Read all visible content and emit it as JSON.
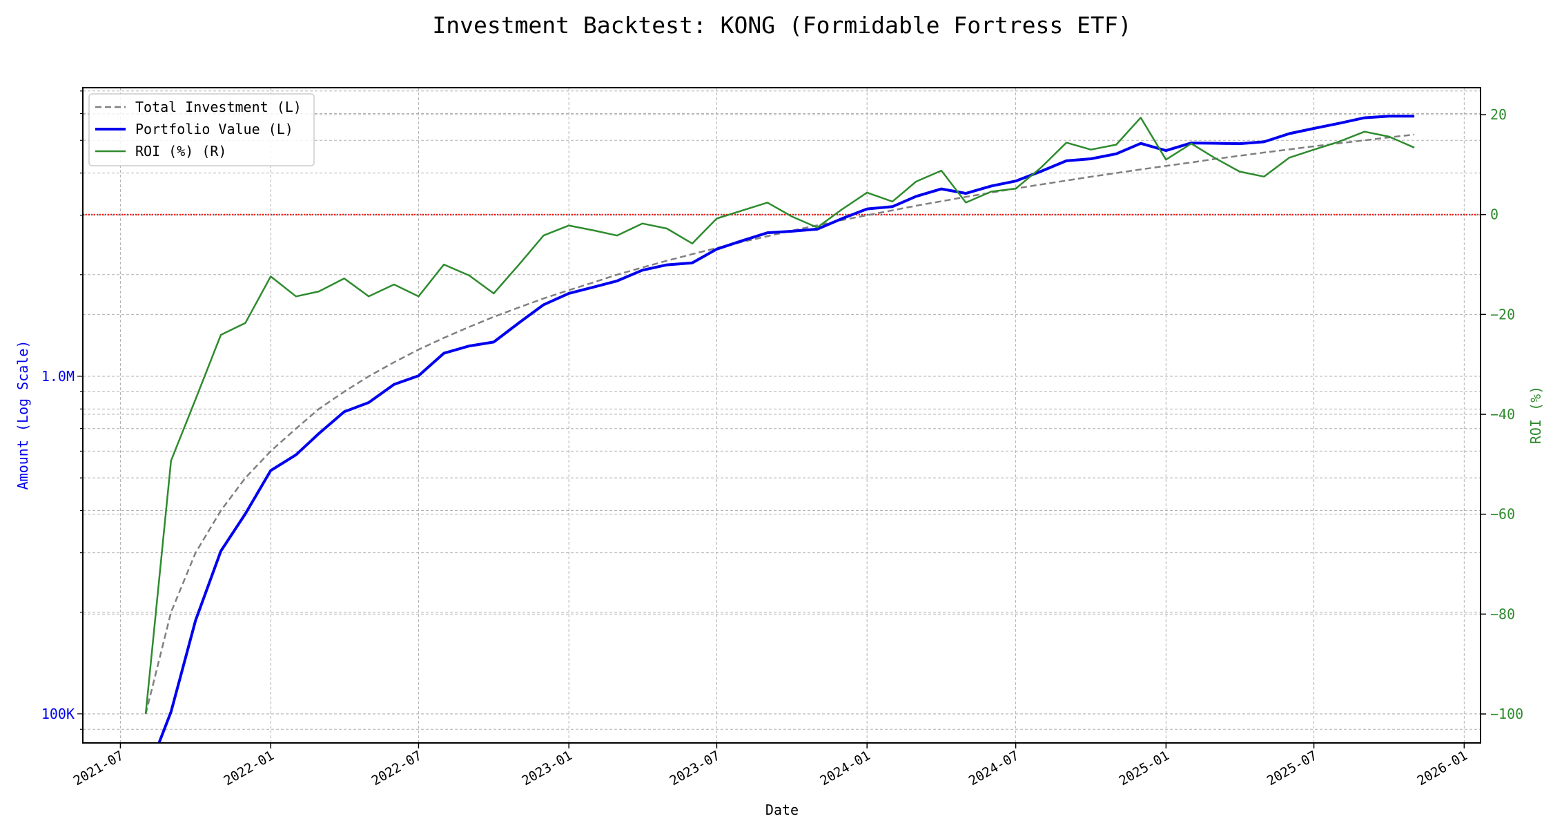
{
  "chart_data": {
    "type": "line",
    "title": "Investment Backtest: KONG (Formidable Fortress ETF)",
    "xlabel": "Date",
    "ylabel_left": "Amount (Log Scale)",
    "ylabel_right": "ROI (%)",
    "left_scale": "log",
    "xlim": [
      "2021-05-16",
      "2026-01-21"
    ],
    "ylim_left": [
      82000,
      7160000
    ],
    "ylim_right": [
      -105.8,
      25.4
    ],
    "grid": true,
    "legend_position": "top-left",
    "x_ticks": [
      "2021-07",
      "2022-01",
      "2022-07",
      "2023-01",
      "2023-07",
      "2024-01",
      "2024-07",
      "2025-01",
      "2025-07",
      "2026-01"
    ],
    "y_ticks_left": [
      {
        "value": 100000,
        "label": "100K"
      },
      {
        "value": 1000000,
        "label": "1.0M"
      }
    ],
    "y_ticks_right": [
      20,
      0,
      -20,
      -40,
      -60,
      -80,
      -100
    ],
    "reference_line": {
      "axis": "right",
      "value": 0,
      "color": "#ff0000",
      "style": "dotted"
    },
    "x": [
      "2021-08",
      "2021-09",
      "2021-10",
      "2021-11",
      "2021-12",
      "2022-01",
      "2022-02",
      "2022-03",
      "2022-04",
      "2022-05",
      "2022-06",
      "2022-07",
      "2022-08",
      "2022-09",
      "2022-10",
      "2022-11",
      "2022-12",
      "2023-01",
      "2023-02",
      "2023-03",
      "2023-04",
      "2023-05",
      "2023-06",
      "2023-07",
      "2023-08",
      "2023-09",
      "2023-10",
      "2023-11",
      "2023-12",
      "2024-01",
      "2024-02",
      "2024-03",
      "2024-04",
      "2024-05",
      "2024-06",
      "2024-07",
      "2024-08",
      "2024-09",
      "2024-10",
      "2024-11",
      "2024-12",
      "2025-01",
      "2025-02",
      "2025-03",
      "2025-04",
      "2025-05",
      "2025-06",
      "2025-07",
      "2025-08",
      "2025-09",
      "2025-10",
      "2025-11"
    ],
    "series": [
      {
        "name": "Total Investment (L)",
        "axis": "left",
        "color": "#808080",
        "style": "dashed",
        "values": [
          100000,
          200000,
          300000,
          400000,
          500000,
          600000,
          700000,
          800000,
          900000,
          1000000,
          1100000,
          1200000,
          1300000,
          1400000,
          1500000,
          1600000,
          1700000,
          1800000,
          1900000,
          2000000,
          2100000,
          2200000,
          2300000,
          2400000,
          2500000,
          2600000,
          2700000,
          2800000,
          2900000,
          3000000,
          3100000,
          3200000,
          3300000,
          3400000,
          3500000,
          3600000,
          3700000,
          3800000,
          3900000,
          4000000,
          4100000,
          4200000,
          4300000,
          4400000,
          4500000,
          4600000,
          4700000,
          4800000,
          4900000,
          5000000,
          5100000,
          5200000
        ]
      },
      {
        "name": "Portfolio Value (L)",
        "axis": "left",
        "color": "#0000ee",
        "style": "solid",
        "values": [
          0,
          101400,
          189000,
          303600,
          391500,
          525600,
          585200,
          676800,
          784800,
          836000,
          946000,
          1003200,
          1170000,
          1229200,
          1263000,
          1440000,
          1628600,
          1760400,
          1839200,
          1916000,
          2062200,
          2138400,
          2166600,
          2380800,
          2520000,
          2662400,
          2689200,
          2727200,
          2929000,
          3132000,
          3180600,
          3411200,
          3590400,
          3481600,
          3661000,
          3787200,
          4047800,
          4347200,
          4407000,
          4560000,
          4895400,
          4662000,
          4910600,
          4901600,
          4887000,
          4949600,
          5235800,
          5424000,
          5615400,
          5830000,
          5895600,
          5896800
        ]
      },
      {
        "name": "ROI (%) (R)",
        "axis": "right",
        "color": "#2e8b2e",
        "style": "solid",
        "values": [
          -100,
          -49.3,
          -37,
          -24.1,
          -21.7,
          -12.4,
          -16.4,
          -15.4,
          -12.8,
          -16.4,
          -14,
          -16.4,
          -10,
          -12.2,
          -15.8,
          -10,
          -4.2,
          -2.2,
          -3.2,
          -4.2,
          -1.8,
          -2.8,
          -5.8,
          -0.8,
          0.8,
          2.4,
          -0.4,
          -2.6,
          1,
          4.4,
          2.6,
          6.6,
          8.8,
          2.4,
          4.6,
          5.2,
          9.4,
          14.4,
          13,
          14,
          19.4,
          11,
          14.2,
          11.4,
          8.6,
          7.6,
          11.4,
          13,
          14.6,
          16.6,
          15.6,
          13.4
        ]
      }
    ]
  }
}
